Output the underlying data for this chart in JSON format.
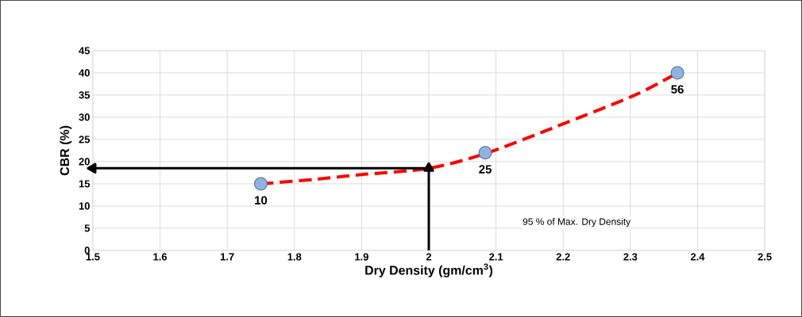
{
  "chart_data": {
    "type": "scatter",
    "xlabel": "Dry Density (gm/cm$^{3}$)",
    "ylabel": "CBR (%)",
    "xlim": [
      1.5,
      2.5
    ],
    "xticks": [
      1.5,
      1.6,
      1.7,
      1.8,
      1.9,
      2,
      2.1,
      2.2,
      2.3,
      2.4,
      2.5
    ],
    "ylim": [
      0,
      45
    ],
    "yticks": [
      0,
      5,
      10,
      15,
      20,
      25,
      30,
      35,
      40,
      45
    ],
    "grid": true,
    "series": [
      {
        "type": "line",
        "color": "#ff0000",
        "line_style": "dashed",
        "marker": "none",
        "x": [
          1.75,
          1.83,
          1.894,
          2,
          2.084,
          2.19,
          2.307,
          2.37
        ],
        "values": [
          15,
          16,
          17,
          18.5,
          21.8,
          27.9,
          35,
          40
        ]
      },
      {
        "color": "#8db3e2",
        "marker": "circle",
        "x": [
          1.75,
          2.084,
          2.37
        ],
        "values": [
          15,
          22,
          40
        ]
      },
      {
        "type": "line",
        "color": "#000000",
        "line_style": "solid",
        "marker": "triangle",
        "x": [
          2,
          2
        ],
        "values": [
          0,
          18.5
        ]
      },
      {
        "type": "line",
        "color": "#000000",
        "line_style": "solid",
        "marker": "triangle",
        "x": [
          2,
          1.5
        ],
        "values": [
          18.5,
          18.5
        ]
      }
    ],
    "annotations": [
      {
        "text": "10",
        "x": 1.75,
        "y": 15
      },
      {
        "text": "25",
        "x": 2.084,
        "y": 22
      },
      {
        "text": "56",
        "x": 2.37,
        "y": 40
      },
      "95 % of Max.  Dry Density"
    ]
  }
}
